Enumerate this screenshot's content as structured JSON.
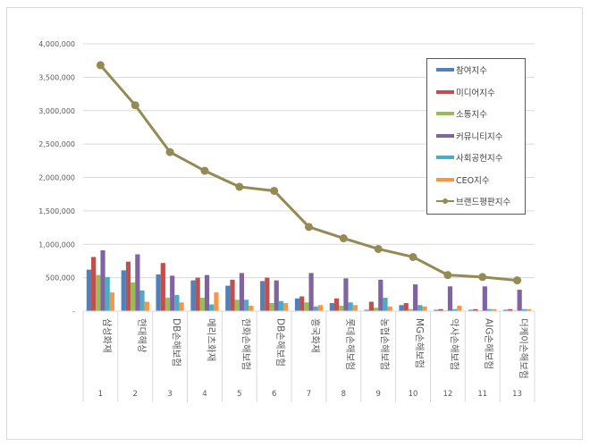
{
  "chart_data": {
    "type": "bar+line",
    "title": "",
    "xlabel": "",
    "ylabel": "",
    "ylim": [
      0,
      4000000
    ],
    "yticks": [
      "-",
      "500,000",
      "1,000,000",
      "1,500,000",
      "2,000,000",
      "2,500,000",
      "3,000,000",
      "3,500,000",
      "4,000,000"
    ],
    "grid": true,
    "legend_position": "upper-right-inside",
    "categories": [
      "삼성화재",
      "현대해상",
      "DB손해보험",
      "메리츠화재",
      "한화손해보험",
      "DB손해보험",
      "흥국화재",
      "롯데손해보험",
      "농협손해보험",
      "MG손해보험",
      "악사손해보험",
      "AIG손해보험",
      "더케이손해보험"
    ],
    "category_ranks": [
      "1",
      "2",
      "3",
      "4",
      "5",
      "6",
      "7",
      "8",
      "9",
      "10",
      "12",
      "11",
      "13"
    ],
    "series": [
      {
        "name": "참여지수",
        "type": "bar",
        "color": "#4F81BD",
        "values": [
          620000,
          610000,
          550000,
          460000,
          380000,
          450000,
          190000,
          120000,
          20000,
          90000,
          20000,
          20000,
          20000
        ]
      },
      {
        "name": "미디어지수",
        "type": "bar",
        "color": "#C0504D",
        "values": [
          810000,
          740000,
          720000,
          500000,
          470000,
          500000,
          220000,
          190000,
          140000,
          120000,
          30000,
          30000,
          30000
        ]
      },
      {
        "name": "소통지수",
        "type": "bar",
        "color": "#9BBB59",
        "values": [
          540000,
          430000,
          200000,
          200000,
          170000,
          120000,
          130000,
          80000,
          50000,
          30000,
          10000,
          10000,
          10000
        ]
      },
      {
        "name": "커뮤니티지수",
        "type": "bar",
        "color": "#8064A2",
        "values": [
          910000,
          850000,
          530000,
          540000,
          570000,
          460000,
          570000,
          490000,
          470000,
          400000,
          370000,
          370000,
          320000
        ]
      },
      {
        "name": "사회공헌지수",
        "type": "bar",
        "color": "#4BACC6",
        "values": [
          510000,
          310000,
          240000,
          100000,
          170000,
          150000,
          70000,
          130000,
          200000,
          90000,
          30000,
          30000,
          30000
        ]
      },
      {
        "name": "CEO지수",
        "type": "bar",
        "color": "#F79646",
        "values": [
          280000,
          140000,
          130000,
          280000,
          80000,
          120000,
          90000,
          90000,
          70000,
          70000,
          80000,
          30000,
          30000
        ]
      },
      {
        "name": "브랜드평판지수",
        "type": "line",
        "color": "#948A54",
        "values": [
          3680000,
          3080000,
          2380000,
          2100000,
          1860000,
          1800000,
          1260000,
          1090000,
          930000,
          810000,
          540000,
          510000,
          460000
        ]
      }
    ]
  },
  "legend": {
    "items": [
      "참여지수",
      "미디어지수",
      "소통지수",
      "커뮤니티지수",
      "사회공헌지수",
      "CEO지수",
      "브랜드평판지수"
    ]
  }
}
